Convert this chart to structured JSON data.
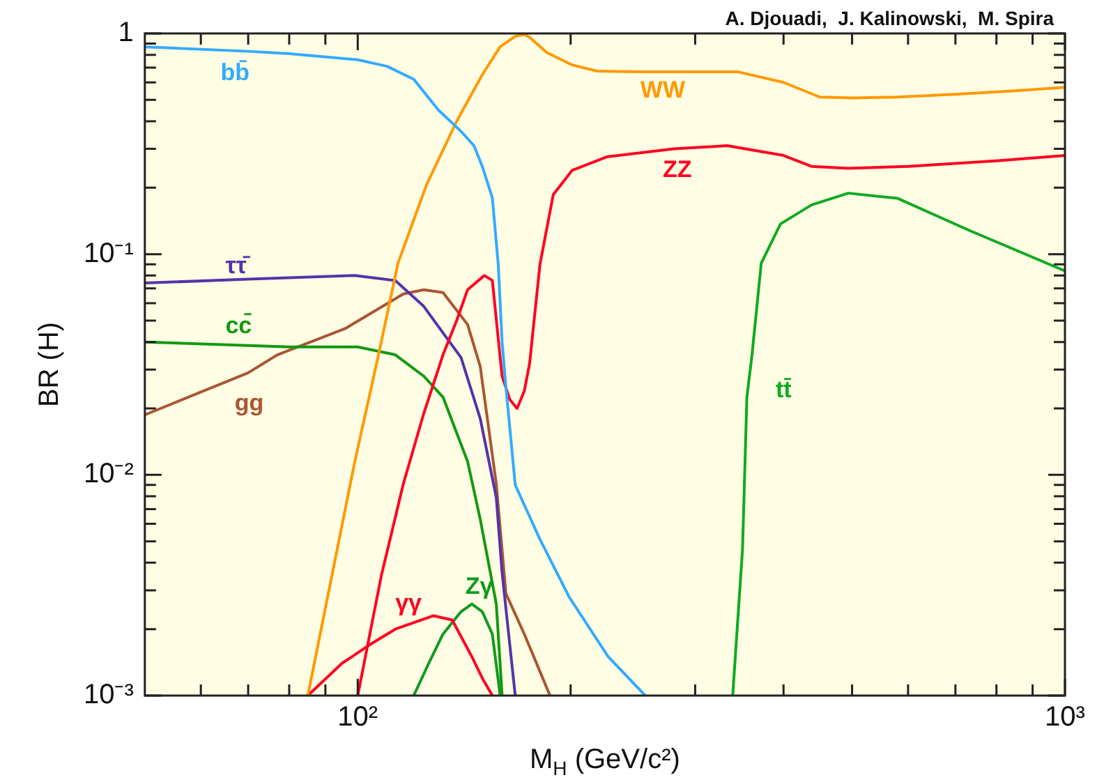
{
  "chart_data": {
    "type": "line",
    "xlabel": "M$_{H}$ (GeV/c²)",
    "ylabel": "BR (H)",
    "log": "xy",
    "legend": false,
    "marker": "none",
    "xlim": [
      50,
      1000
    ],
    "ylim": [
      0.001,
      1
    ],
    "xticks": [
      {
        "value": 60,
        "label": null
      },
      {
        "value": 70,
        "label": null
      },
      {
        "value": 80,
        "label": null
      },
      {
        "value": 90,
        "label": null
      },
      {
        "value": 100,
        "label": "10²"
      },
      {
        "value": 200,
        "label": null
      },
      {
        "value": 300,
        "label": null
      },
      {
        "value": 400,
        "label": null
      },
      {
        "value": 500,
        "label": null
      },
      {
        "value": 600,
        "label": null
      },
      {
        "value": 700,
        "label": null
      },
      {
        "value": 800,
        "label": null
      },
      {
        "value": 900,
        "label": null
      },
      {
        "value": 1000,
        "label": "10³"
      }
    ],
    "yticks": [
      {
        "value": 0.001,
        "label": "10⁻³"
      },
      {
        "value": 0.002,
        "label": null
      },
      {
        "value": 0.003,
        "label": null
      },
      {
        "value": 0.004,
        "label": null
      },
      {
        "value": 0.005,
        "label": null
      },
      {
        "value": 0.006,
        "label": null
      },
      {
        "value": 0.007,
        "label": null
      },
      {
        "value": 0.008,
        "label": null
      },
      {
        "value": 0.009,
        "label": null
      },
      {
        "value": 0.01,
        "label": "10⁻²"
      },
      {
        "value": 0.02,
        "label": null
      },
      {
        "value": 0.03,
        "label": null
      },
      {
        "value": 0.04,
        "label": null
      },
      {
        "value": 0.05,
        "label": null
      },
      {
        "value": 0.06,
        "label": null
      },
      {
        "value": 0.07,
        "label": null
      },
      {
        "value": 0.08,
        "label": null
      },
      {
        "value": 0.09,
        "label": null
      },
      {
        "value": 0.1,
        "label": "10⁻¹"
      },
      {
        "value": 0.2,
        "label": null
      },
      {
        "value": 0.3,
        "label": null
      },
      {
        "value": 0.4,
        "label": null
      },
      {
        "value": 0.5,
        "label": null
      },
      {
        "value": 0.6,
        "label": null
      },
      {
        "value": 0.7,
        "label": null
      },
      {
        "value": 0.8,
        "label": null
      },
      {
        "value": 0.9,
        "label": null
      },
      1
    ],
    "annotations": [
      "A. Djouadi,  J. Kalinowski,  M. Spira"
    ],
    "series": [
      {
        "name": "bb̄",
        "color": "#33aaff",
        "x": [
          50,
          70,
          80,
          100,
          110,
          120,
          130,
          140,
          146,
          150,
          155,
          158,
          160,
          162,
          167,
          181,
          199,
          226,
          255
        ],
        "values": [
          0.87,
          0.83,
          0.81,
          0.76,
          0.71,
          0.62,
          0.45,
          0.36,
          0.31,
          0.25,
          0.18,
          0.09,
          0.04,
          0.025,
          0.009,
          0.0051,
          0.0028,
          0.0015,
          0.001
        ]
      },
      {
        "name": "WW",
        "color": "#ff9900",
        "x": [
          85,
          99,
          107,
          114,
          125,
          138,
          150,
          159,
          167,
          172,
          175,
          185,
          201,
          218,
          250,
          300,
          345,
          400,
          450,
          500,
          580,
          700,
          850,
          1000
        ],
        "values": [
          0.001,
          0.0114,
          0.035,
          0.091,
          0.205,
          0.4,
          0.65,
          0.87,
          0.97,
          0.99,
          0.96,
          0.82,
          0.72,
          0.675,
          0.67,
          0.67,
          0.67,
          0.6,
          0.515,
          0.51,
          0.515,
          0.53,
          0.55,
          0.57
        ]
      },
      {
        "name": "ZZ",
        "color": "#ff0022",
        "x": [
          100,
          108,
          116,
          124,
          132,
          138,
          143,
          151,
          155,
          159,
          160,
          164,
          168,
          172,
          175,
          181,
          189,
          201,
          225,
          280,
          333,
          400,
          438,
          494,
          600,
          800,
          1000
        ],
        "values": [
          0.001,
          0.0035,
          0.0091,
          0.019,
          0.035,
          0.05,
          0.069,
          0.08,
          0.076,
          0.034,
          0.028,
          0.022,
          0.02,
          0.024,
          0.032,
          0.09,
          0.186,
          0.24,
          0.276,
          0.3,
          0.31,
          0.28,
          0.25,
          0.245,
          0.25,
          0.265,
          0.28
        ]
      },
      {
        "name": "tt̄",
        "color": "#11aa22",
        "x": [
          339,
          350,
          355,
          361,
          372,
          396,
          438,
          494,
          580,
          733,
          1000
        ],
        "values": [
          0.001,
          0.0046,
          0.0225,
          0.035,
          0.091,
          0.137,
          0.167,
          0.189,
          0.179,
          0.128,
          0.084
        ]
      },
      {
        "name": "ττ̄",
        "color": "#5533aa",
        "x": [
          50,
          70,
          99,
          113,
          124,
          132,
          140,
          149,
          157,
          160,
          167
        ],
        "values": [
          0.074,
          0.077,
          0.08,
          0.076,
          0.058,
          0.044,
          0.034,
          0.018,
          0.0079,
          0.0036,
          0.001
        ]
      },
      {
        "name": "cc̄",
        "color": "#119911",
        "x": [
          50,
          80,
          100,
          113,
          124,
          132,
          143,
          149,
          157,
          160
        ],
        "values": [
          0.04,
          0.038,
          0.038,
          0.035,
          0.028,
          0.0225,
          0.0115,
          0.0063,
          0.0026,
          0.001
        ]
      },
      {
        "name": "gg",
        "color": "#aa5533",
        "x": [
          50,
          70,
          77,
          96,
          116,
          124,
          132,
          143,
          149,
          157,
          162,
          172,
          187
        ],
        "values": [
          0.0187,
          0.029,
          0.035,
          0.046,
          0.066,
          0.069,
          0.067,
          0.048,
          0.031,
          0.0091,
          0.0029,
          0.0019,
          0.001
        ]
      },
      {
        "name": "γγ",
        "color": "#ff0022",
        "x": [
          85,
          95,
          104,
          113,
          128,
          136,
          145,
          150,
          155
        ],
        "values": [
          0.001,
          0.0014,
          0.0017,
          0.002,
          0.0023,
          0.0022,
          0.0015,
          0.0012,
          0.001
        ]
      },
      {
        "name": "Zγ",
        "color": "#119922",
        "x": [
          120,
          126,
          132,
          140,
          145,
          150,
          155,
          159
        ],
        "values": [
          0.001,
          0.0014,
          0.0019,
          0.0024,
          0.0026,
          0.0024,
          0.0019,
          0.001
        ]
      }
    ]
  }
}
